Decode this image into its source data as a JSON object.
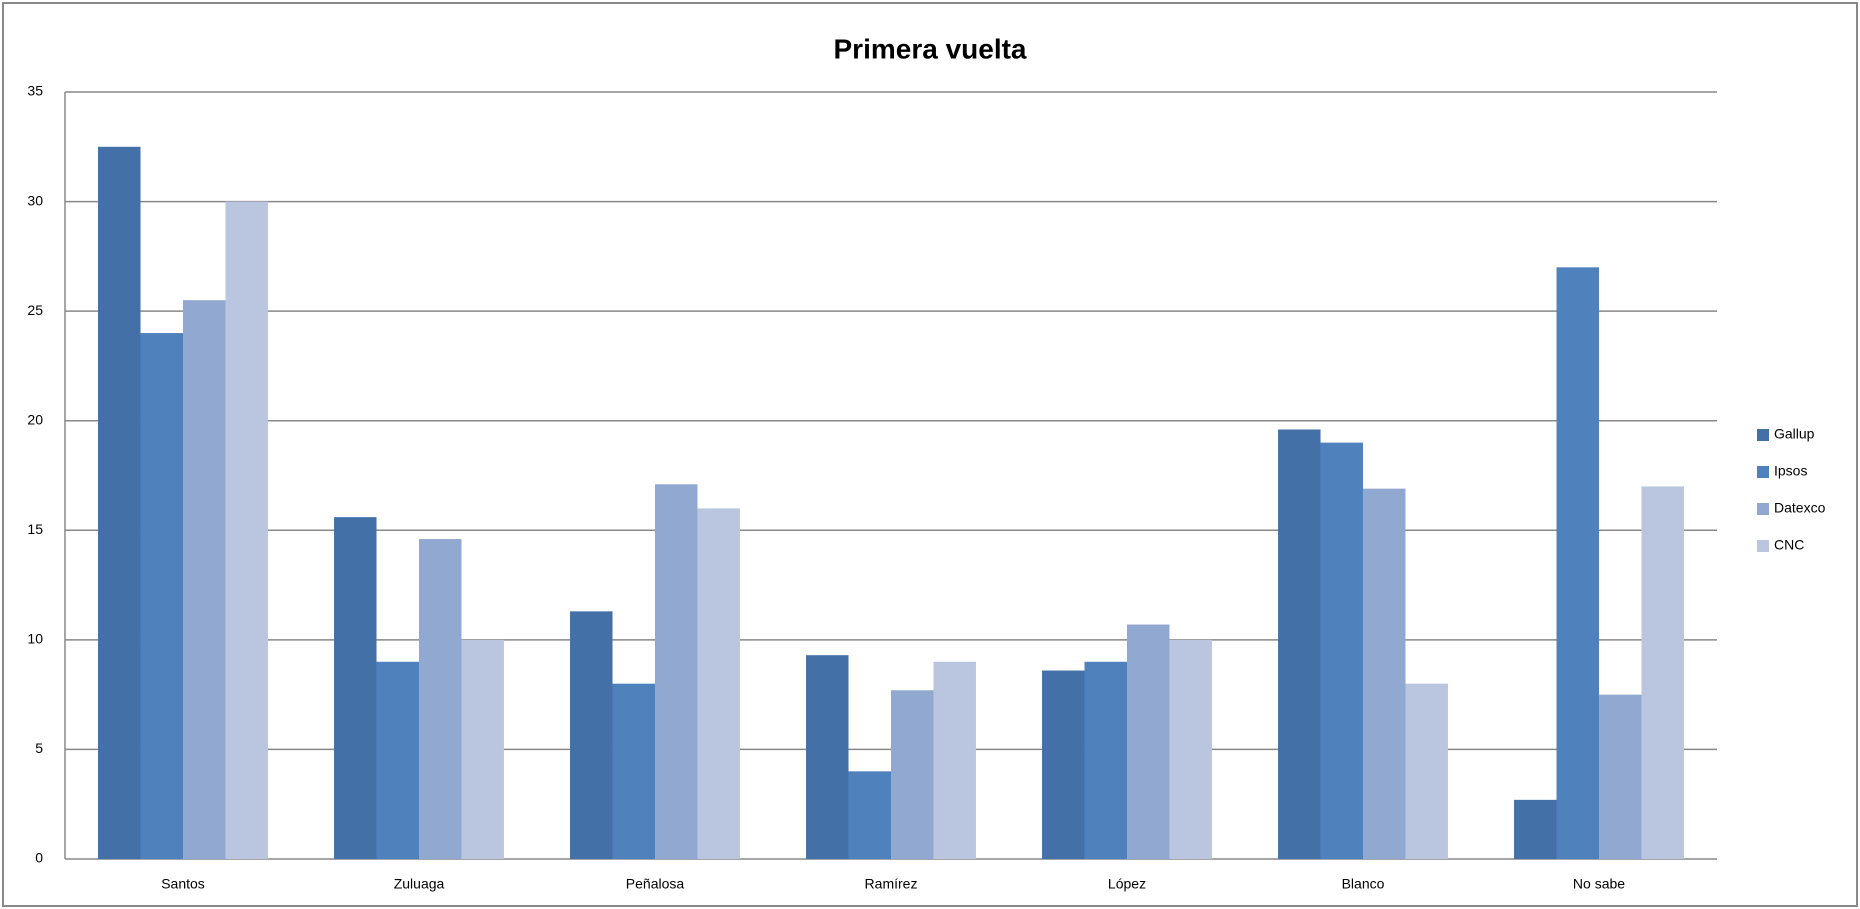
{
  "chart_data": {
    "type": "bar",
    "title": "Primera vuelta",
    "categories": [
      "Santos",
      "Zuluaga",
      "Peñalosa",
      "Ramírez",
      "López",
      "Blanco",
      "No sabe"
    ],
    "series": [
      {
        "name": "Gallup",
        "color": "#4470a8",
        "values": [
          32.5,
          15.6,
          11.3,
          9.3,
          8.6,
          19.6,
          2.7
        ]
      },
      {
        "name": "Ipsos",
        "color": "#4f81bd",
        "values": [
          24,
          9,
          8,
          4,
          9,
          19,
          27
        ]
      },
      {
        "name": "Datexco",
        "color": "#91a9d0",
        "values": [
          25.5,
          14.6,
          17.1,
          7.7,
          10.7,
          16.9,
          7.5
        ]
      },
      {
        "name": "CNC",
        "color": "#bac6e0",
        "values": [
          30,
          10,
          16,
          9,
          10,
          8,
          17
        ]
      }
    ],
    "ylim": [
      0,
      35
    ],
    "yticks": [
      0,
      5,
      10,
      15,
      20,
      25,
      30,
      35
    ],
    "grid": true,
    "legend": "right"
  }
}
